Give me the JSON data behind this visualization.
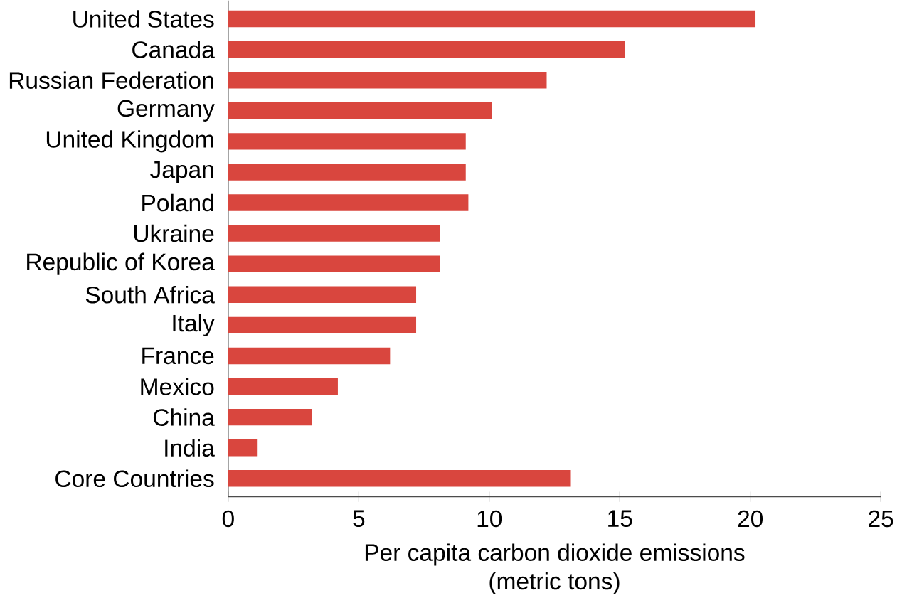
{
  "chart_data": {
    "type": "bar",
    "orientation": "horizontal",
    "xlabel": "Per capita carbon dioxide emissions\n(metric tons)",
    "categories": [
      "United States",
      "Canada",
      "Russian Federation",
      "Germany",
      "United Kingdom",
      "Japan",
      "Poland",
      "Ukraine",
      "Republic of Korea",
      "South Africa",
      "Italy",
      "France",
      "Mexico",
      "China",
      "India",
      "Core Countries"
    ],
    "values": [
      20.2,
      15.2,
      12.2,
      10.1,
      9.1,
      9.1,
      9.2,
      8.1,
      8.1,
      7.2,
      7.2,
      6.2,
      4.2,
      3.2,
      1.1,
      13.1
    ],
    "color": "#d9463e",
    "xlim": [
      0,
      25
    ],
    "xticks": [
      0,
      5,
      10,
      15,
      20,
      25
    ],
    "grid": false
  }
}
